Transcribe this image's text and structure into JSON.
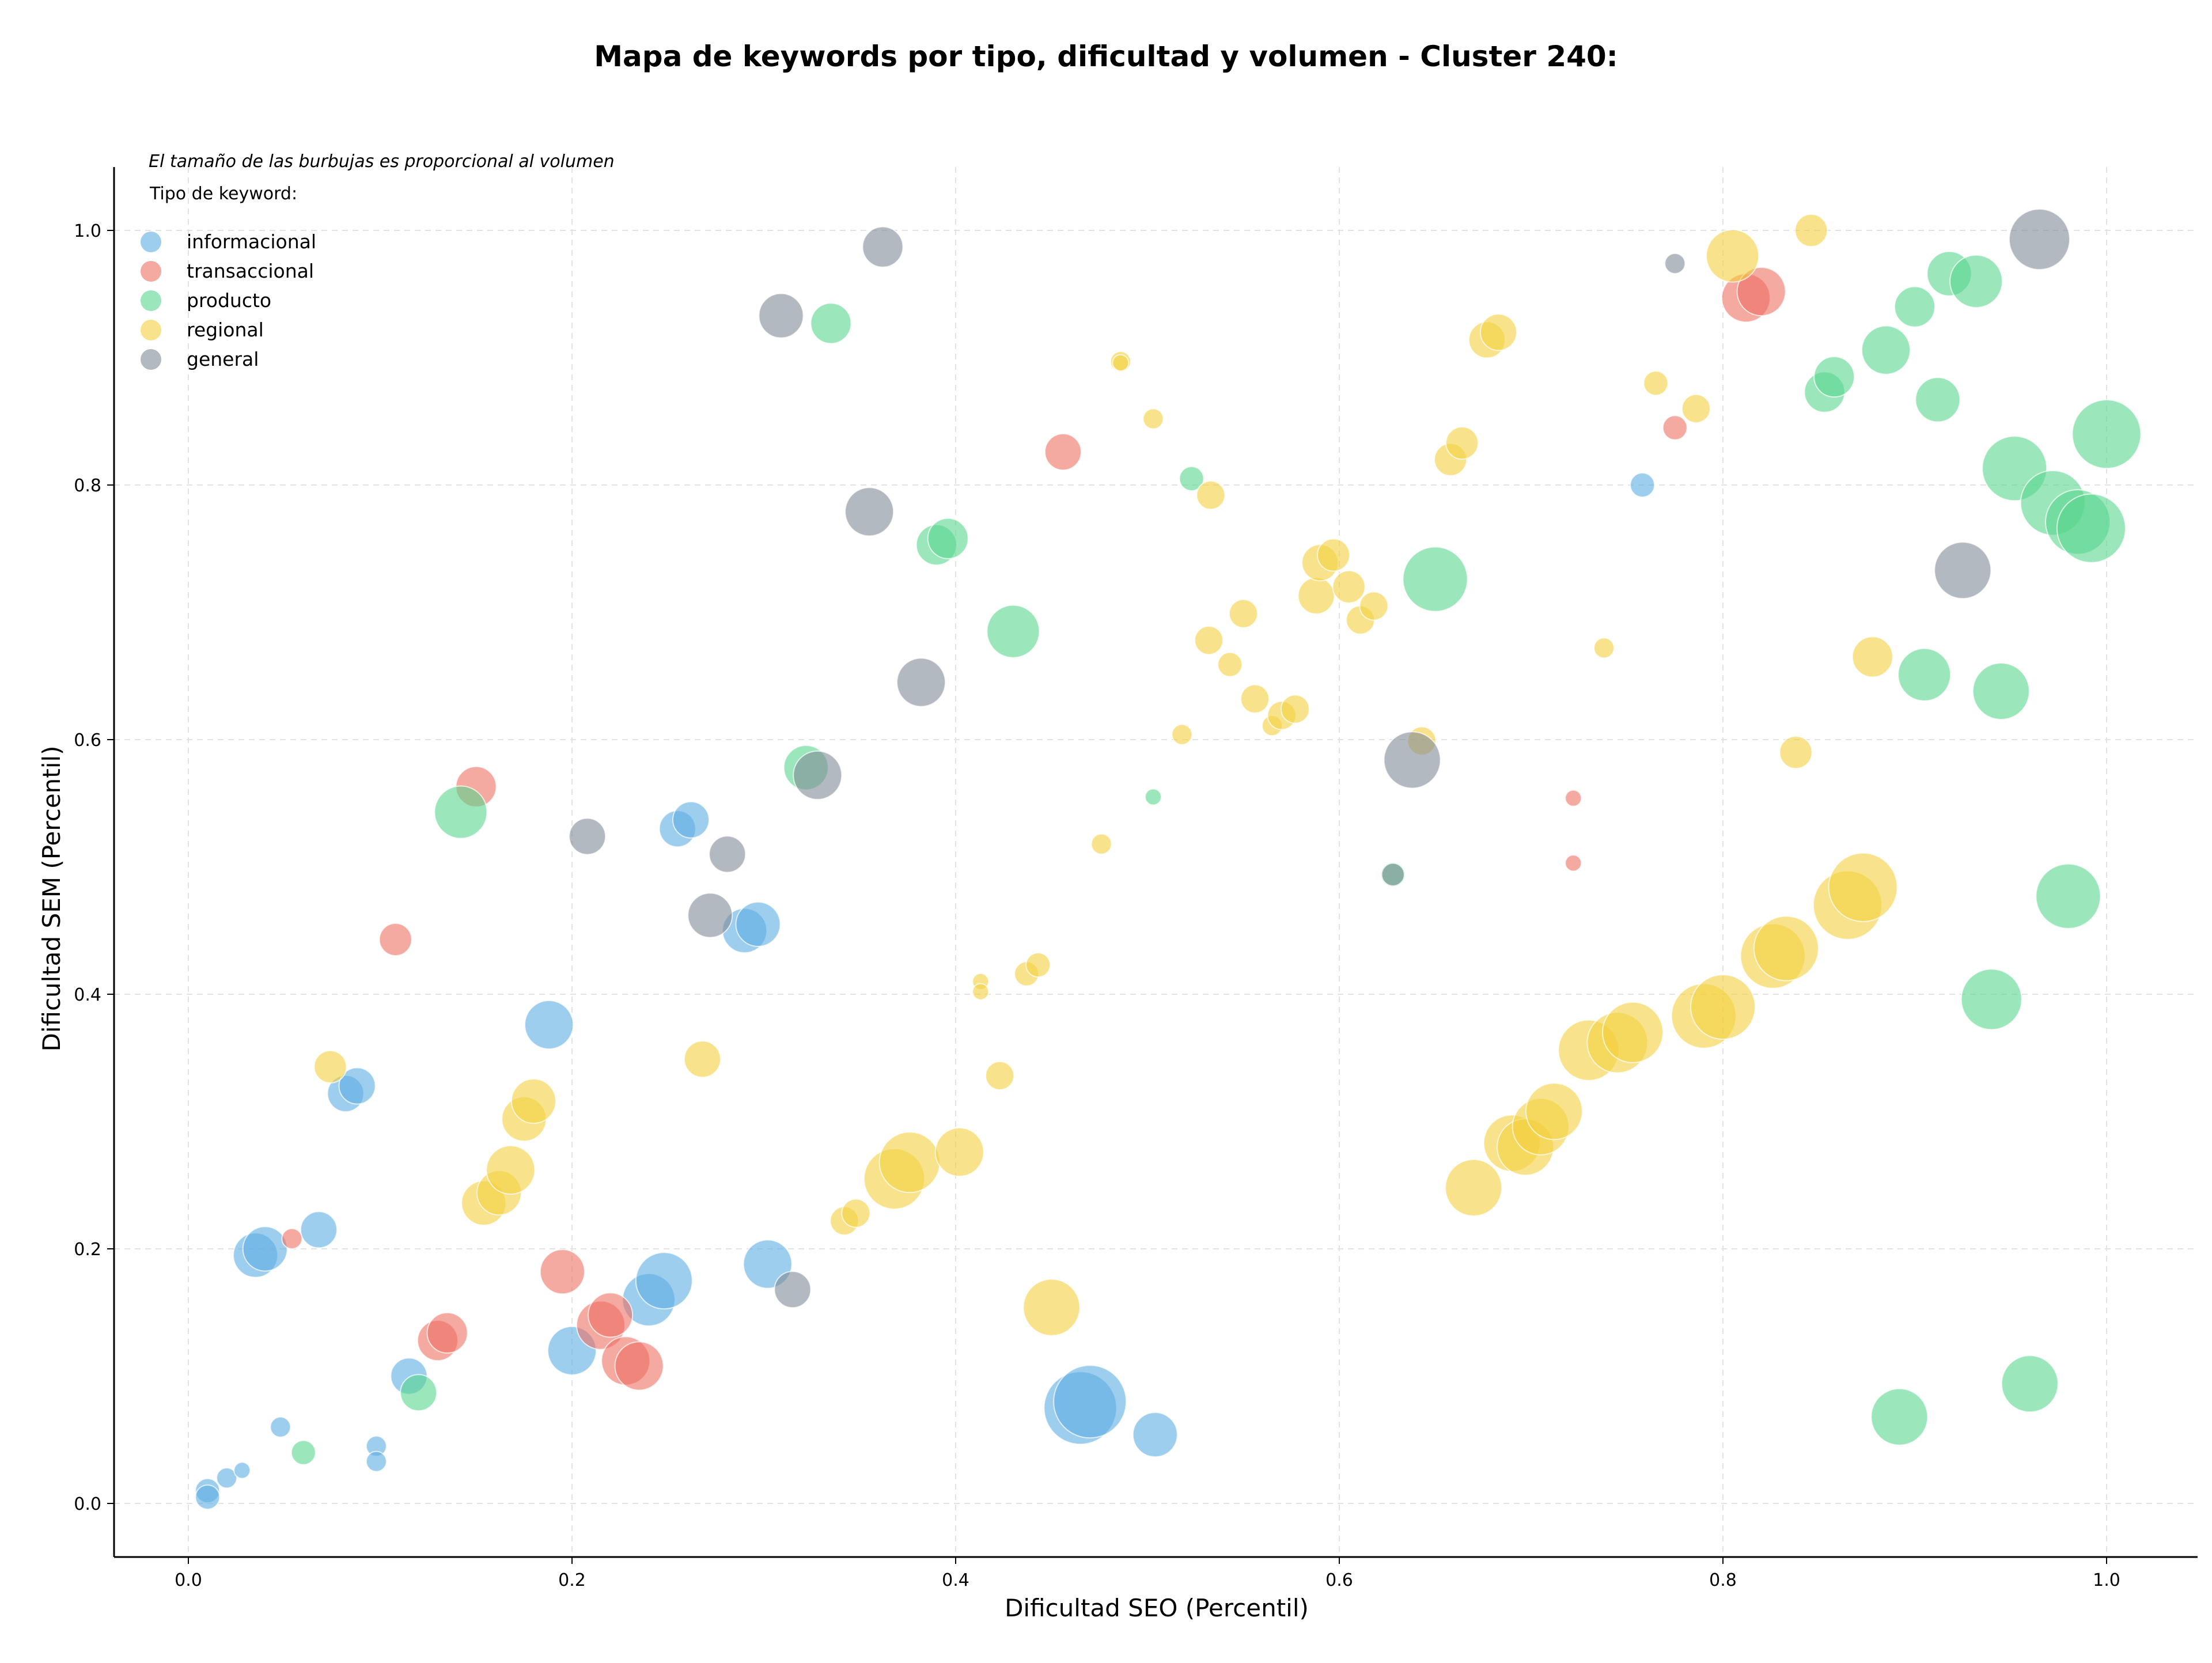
{
  "chart_data": {
    "type": "scatter",
    "title": "Mapa de keywords por tipo, dificultad y volumen - Cluster 240:",
    "xlabel": "Dificultad SEO (Percentil)",
    "ylabel": "Dificultad SEM (Percentil)",
    "xlim": [
      -0.04,
      1.05
    ],
    "ylim": [
      -0.04,
      1.05
    ],
    "xticks": [
      0.0,
      0.2,
      0.4,
      0.6,
      0.8,
      1.0
    ],
    "yticks": [
      0.0,
      0.2,
      0.4,
      0.6,
      0.8,
      1.0
    ],
    "tick_labels_x": [
      "0.0",
      "0.2",
      "0.4",
      "0.6",
      "0.8",
      "1.0"
    ],
    "tick_labels_y": [
      "0.0",
      "0.2",
      "0.4",
      "0.6",
      "0.8",
      "1.0"
    ],
    "grid": true,
    "legend_position": "top-left",
    "legend_note": "El tamaño de las burbujas es proporcional al volumen",
    "legend_title": "Tipo de keyword:",
    "series": [
      {
        "name": "informacional",
        "color": "#5dade2",
        "points": [
          [
            0.01,
            0.01,
            0.3
          ],
          [
            0.01,
            0.005,
            0.3
          ],
          [
            0.02,
            0.02,
            0.25
          ],
          [
            0.028,
            0.026,
            0.2
          ],
          [
            0.048,
            0.06,
            0.25
          ],
          [
            0.098,
            0.045,
            0.25
          ],
          [
            0.098,
            0.033,
            0.25
          ],
          [
            0.035,
            0.195,
            0.55
          ],
          [
            0.04,
            0.2,
            0.55
          ],
          [
            0.068,
            0.215,
            0.45
          ],
          [
            0.082,
            0.322,
            0.45
          ],
          [
            0.088,
            0.328,
            0.45
          ],
          [
            0.188,
            0.376,
            0.6
          ],
          [
            0.115,
            0.1,
            0.45
          ],
          [
            0.2,
            0.12,
            0.6
          ],
          [
            0.24,
            0.16,
            0.65
          ],
          [
            0.248,
            0.175,
            0.7
          ],
          [
            0.302,
            0.188,
            0.6
          ],
          [
            0.255,
            0.53,
            0.45
          ],
          [
            0.262,
            0.537,
            0.45
          ],
          [
            0.29,
            0.45,
            0.55
          ],
          [
            0.297,
            0.455,
            0.55
          ],
          [
            0.465,
            0.075,
            0.9
          ],
          [
            0.47,
            0.08,
            0.9
          ],
          [
            0.504,
            0.054,
            0.55
          ],
          [
            0.758,
            0.8,
            0.3
          ]
        ]
      },
      {
        "name": "transaccional",
        "color": "#ec7063",
        "points": [
          [
            0.054,
            0.208,
            0.25
          ],
          [
            0.108,
            0.443,
            0.4
          ],
          [
            0.15,
            0.563,
            0.5
          ],
          [
            0.13,
            0.128,
            0.5
          ],
          [
            0.135,
            0.134,
            0.5
          ],
          [
            0.195,
            0.182,
            0.55
          ],
          [
            0.215,
            0.14,
            0.6
          ],
          [
            0.22,
            0.148,
            0.55
          ],
          [
            0.228,
            0.112,
            0.6
          ],
          [
            0.235,
            0.108,
            0.6
          ],
          [
            0.456,
            0.826,
            0.45
          ],
          [
            0.722,
            0.554,
            0.2
          ],
          [
            0.722,
            0.503,
            0.2
          ],
          [
            0.775,
            0.845,
            0.3
          ],
          [
            0.812,
            0.947,
            0.6
          ],
          [
            0.82,
            0.952,
            0.6
          ]
        ]
      },
      {
        "name": "producto",
        "color": "#58d68d",
        "points": [
          [
            0.06,
            0.04,
            0.3
          ],
          [
            0.12,
            0.087,
            0.45
          ],
          [
            0.142,
            0.543,
            0.65
          ],
          [
            0.322,
            0.578,
            0.55
          ],
          [
            0.335,
            0.927,
            0.5
          ],
          [
            0.39,
            0.753,
            0.5
          ],
          [
            0.396,
            0.758,
            0.5
          ],
          [
            0.43,
            0.685,
            0.65
          ],
          [
            0.503,
            0.555,
            0.2
          ],
          [
            0.523,
            0.805,
            0.3
          ],
          [
            0.65,
            0.726,
            0.8
          ],
          [
            0.628,
            0.494,
            0.3
          ],
          [
            0.853,
            0.873,
            0.5
          ],
          [
            0.858,
            0.885,
            0.5
          ],
          [
            0.885,
            0.906,
            0.6
          ],
          [
            0.9,
            0.94,
            0.5
          ],
          [
            0.918,
            0.966,
            0.55
          ],
          [
            0.932,
            0.96,
            0.65
          ],
          [
            0.912,
            0.867,
            0.55
          ],
          [
            0.905,
            0.651,
            0.65
          ],
          [
            0.945,
            0.638,
            0.7
          ],
          [
            0.952,
            0.813,
            0.8
          ],
          [
            0.972,
            0.786,
            0.8
          ],
          [
            0.985,
            0.771,
            0.8
          ],
          [
            0.992,
            0.766,
            0.85
          ],
          [
            1.0,
            0.84,
            0.85
          ],
          [
            0.98,
            0.477,
            0.8
          ],
          [
            0.94,
            0.396,
            0.75
          ],
          [
            0.96,
            0.094,
            0.7
          ],
          [
            0.892,
            0.068,
            0.7
          ]
        ]
      },
      {
        "name": "regional",
        "color": "#f4d03f",
        "points": [
          [
            0.074,
            0.343,
            0.4
          ],
          [
            0.154,
            0.236,
            0.55
          ],
          [
            0.162,
            0.244,
            0.55
          ],
          [
            0.168,
            0.262,
            0.6
          ],
          [
            0.175,
            0.302,
            0.55
          ],
          [
            0.18,
            0.316,
            0.55
          ],
          [
            0.268,
            0.349,
            0.45
          ],
          [
            0.342,
            0.222,
            0.35
          ],
          [
            0.348,
            0.228,
            0.35
          ],
          [
            0.368,
            0.255,
            0.75
          ],
          [
            0.376,
            0.268,
            0.75
          ],
          [
            0.402,
            0.276,
            0.6
          ],
          [
            0.413,
            0.41,
            0.2
          ],
          [
            0.413,
            0.402,
            0.2
          ],
          [
            0.423,
            0.336,
            0.35
          ],
          [
            0.437,
            0.416,
            0.3
          ],
          [
            0.443,
            0.423,
            0.3
          ],
          [
            0.45,
            0.154,
            0.7
          ],
          [
            0.476,
            0.518,
            0.25
          ],
          [
            0.486,
            0.897,
            0.25
          ],
          [
            0.486,
            0.896,
            0.2
          ],
          [
            0.503,
            0.852,
            0.25
          ],
          [
            0.518,
            0.604,
            0.25
          ],
          [
            0.533,
            0.792,
            0.35
          ],
          [
            0.532,
            0.678,
            0.35
          ],
          [
            0.543,
            0.659,
            0.3
          ],
          [
            0.55,
            0.699,
            0.35
          ],
          [
            0.556,
            0.632,
            0.35
          ],
          [
            0.565,
            0.611,
            0.25
          ],
          [
            0.57,
            0.619,
            0.35
          ],
          [
            0.577,
            0.624,
            0.35
          ],
          [
            0.588,
            0.713,
            0.45
          ],
          [
            0.59,
            0.739,
            0.45
          ],
          [
            0.597,
            0.745,
            0.4
          ],
          [
            0.605,
            0.72,
            0.4
          ],
          [
            0.611,
            0.694,
            0.35
          ],
          [
            0.618,
            0.705,
            0.35
          ],
          [
            0.643,
            0.599,
            0.35
          ],
          [
            0.658,
            0.82,
            0.4
          ],
          [
            0.664,
            0.833,
            0.4
          ],
          [
            0.67,
            0.248,
            0.7
          ],
          [
            0.677,
            0.914,
            0.45
          ],
          [
            0.683,
            0.92,
            0.45
          ],
          [
            0.69,
            0.283,
            0.7
          ],
          [
            0.697,
            0.28,
            0.7
          ],
          [
            0.705,
            0.296,
            0.7
          ],
          [
            0.712,
            0.308,
            0.7
          ],
          [
            0.73,
            0.356,
            0.75
          ],
          [
            0.738,
            0.672,
            0.25
          ],
          [
            0.745,
            0.362,
            0.75
          ],
          [
            0.753,
            0.37,
            0.75
          ],
          [
            0.765,
            0.88,
            0.3
          ],
          [
            0.786,
            0.86,
            0.35
          ],
          [
            0.79,
            0.383,
            0.8
          ],
          [
            0.8,
            0.39,
            0.8
          ],
          [
            0.805,
            0.98,
            0.65
          ],
          [
            0.826,
            0.43,
            0.8
          ],
          [
            0.833,
            0.436,
            0.8
          ],
          [
            0.838,
            0.59,
            0.4
          ],
          [
            0.846,
            1.0,
            0.4
          ],
          [
            0.865,
            0.47,
            0.85
          ],
          [
            0.873,
            0.484,
            0.85
          ],
          [
            0.878,
            0.665,
            0.5
          ]
        ]
      },
      {
        "name": "general",
        "color": "#808b96",
        "points": [
          [
            0.208,
            0.524,
            0.45
          ],
          [
            0.272,
            0.462,
            0.55
          ],
          [
            0.281,
            0.51,
            0.45
          ],
          [
            0.309,
            0.933,
            0.55
          ],
          [
            0.315,
            0.168,
            0.45
          ],
          [
            0.328,
            0.572,
            0.6
          ],
          [
            0.355,
            0.779,
            0.6
          ],
          [
            0.362,
            0.987,
            0.5
          ],
          [
            0.382,
            0.645,
            0.6
          ],
          [
            0.628,
            0.494,
            0.28
          ],
          [
            0.638,
            0.584,
            0.7
          ],
          [
            0.775,
            0.974,
            0.25
          ],
          [
            0.925,
            0.733,
            0.7
          ],
          [
            0.965,
            0.993,
            0.75
          ]
        ]
      }
    ]
  }
}
